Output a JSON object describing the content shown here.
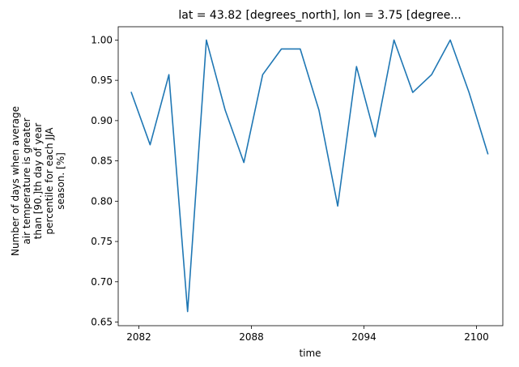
{
  "chart_data": {
    "type": "line",
    "title": "lat = 43.82 [degrees_north], lon = 3.75 [degree...",
    "xlabel": "time",
    "ylabel_lines": [
      "Number of days when average",
      "air temperature is greater",
      "than [90.]th day of year",
      "percentile for each JJA",
      "season. [%]"
    ],
    "x_ticks": [
      "2082",
      "2088",
      "2094",
      "2100"
    ],
    "y_ticks": [
      "0.65",
      "0.70",
      "0.75",
      "0.80",
      "0.85",
      "0.90",
      "0.95",
      "1.00"
    ],
    "xlim": [
      2080.9,
      2101.4
    ],
    "ylim": [
      0.6455,
      1.0165
    ],
    "grid": false,
    "series": [
      {
        "color": "#1f77b4",
        "x": [
          2081.6,
          2082.6,
          2083.6,
          2084.6,
          2085.6,
          2086.6,
          2087.6,
          2088.6,
          2089.6,
          2090.6,
          2091.6,
          2092.6,
          2093.6,
          2094.6,
          2095.6,
          2096.6,
          2097.6,
          2098.6,
          2099.6,
          2100.6
        ],
        "values": [
          0.935,
          0.87,
          0.957,
          0.663,
          1.0,
          0.913,
          0.848,
          0.957,
          0.989,
          0.989,
          0.913,
          0.794,
          0.967,
          0.88,
          1.0,
          0.935,
          0.957,
          1.0,
          0.935,
          0.859
        ]
      }
    ]
  }
}
